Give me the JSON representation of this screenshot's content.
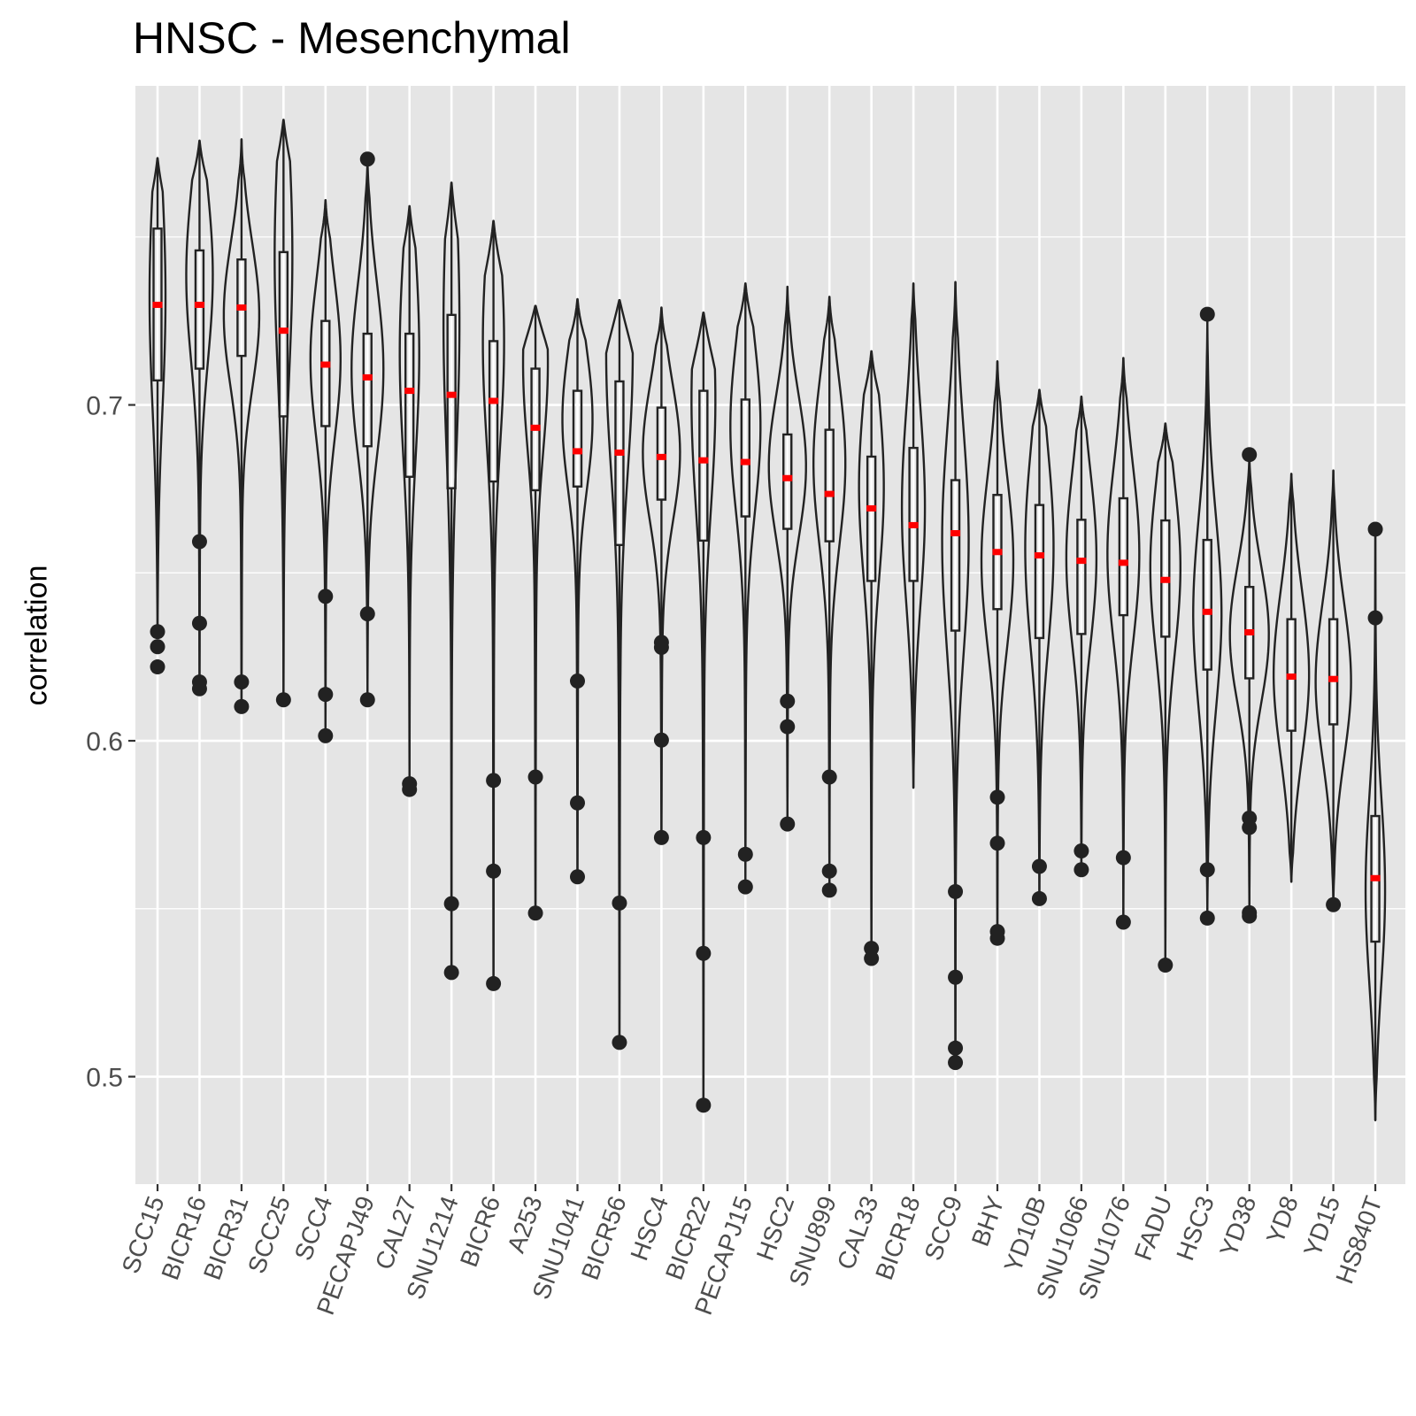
{
  "chart_data": {
    "type": "violin",
    "title": "HNSC - Mesenchymal",
    "xlabel": "",
    "ylabel": "correlation",
    "ylim": [
      0.468,
      0.795
    ],
    "yticks": [
      0.5,
      0.6,
      0.7
    ],
    "ytick_labels": [
      "0.5",
      "0.6",
      "0.7"
    ],
    "grid": true,
    "legend": "none",
    "colors": {
      "panel": "#e5e5e5",
      "grid": "#ffffff",
      "outline": "#222222",
      "median": "#ff0000",
      "axis_text": "#4d4d4d"
    },
    "categories": [
      "SCC15",
      "BICR16",
      "BICR31",
      "SCC25",
      "SCC4",
      "PECAPJ49",
      "CAL27",
      "SNU1214",
      "BICR6",
      "A253",
      "SNU1041",
      "BICR56",
      "HSC4",
      "BICR22",
      "PECAPJ15",
      "HSC2",
      "SNU899",
      "CAL33",
      "BICR18",
      "SCC9",
      "BHY",
      "YD10B",
      "SNU1066",
      "SNU1076",
      "FADU",
      "HSC3",
      "YD38",
      "YD8",
      "YD15",
      "HS840T"
    ],
    "violins": [
      {
        "name": "SCC15",
        "min": 0.633,
        "max": 0.7735,
        "q1": 0.7073,
        "median": 0.7298,
        "q3": 0.7525,
        "center": 0.733,
        "half_width": 0.18,
        "outliers": [
          0.6325,
          0.628,
          0.622
        ]
      },
      {
        "name": "BICR16",
        "min": 0.615,
        "max": 0.7787,
        "q1": 0.7108,
        "median": 0.7298,
        "q3": 0.746,
        "center": 0.739,
        "half_width": 0.3,
        "outliers": [
          0.6593,
          0.635,
          0.6175,
          0.6155
        ]
      },
      {
        "name": "BICR31",
        "min": 0.609,
        "max": 0.7791,
        "q1": 0.7146,
        "median": 0.729,
        "q3": 0.7433,
        "center": 0.727,
        "half_width": 0.4,
        "outliers": [
          0.6175,
          0.6102
        ]
      },
      {
        "name": "SCC25",
        "min": 0.612,
        "max": 0.7849,
        "q1": 0.6966,
        "median": 0.7221,
        "q3": 0.7455,
        "center": 0.745,
        "half_width": 0.2,
        "outliers": [
          0.6122
        ]
      },
      {
        "name": "SCC4",
        "min": 0.601,
        "max": 0.761,
        "q1": 0.6937,
        "median": 0.712,
        "q3": 0.725,
        "center": 0.714,
        "half_width": 0.34,
        "outliers": [
          0.643,
          0.6138,
          0.6015
        ]
      },
      {
        "name": "PECAPJ49",
        "min": 0.611,
        "max": 0.7732,
        "q1": 0.6877,
        "median": 0.7082,
        "q3": 0.7212,
        "center": 0.711,
        "half_width": 0.36,
        "outliers": [
          0.7732,
          0.6378,
          0.6122
        ]
      },
      {
        "name": "CAL27",
        "min": 0.585,
        "max": 0.7592,
        "q1": 0.6786,
        "median": 0.7042,
        "q3": 0.7212,
        "center": 0.716,
        "half_width": 0.22,
        "outliers": [
          0.5872,
          0.5855
        ]
      },
      {
        "name": "SNU1214",
        "min": 0.531,
        "max": 0.7662,
        "q1": 0.6752,
        "median": 0.703,
        "q3": 0.7268,
        "center": 0.725,
        "half_width": 0.18,
        "outliers": [
          0.5515,
          0.531
        ]
      },
      {
        "name": "BICR6",
        "min": 0.527,
        "max": 0.7548,
        "q1": 0.6772,
        "median": 0.7012,
        "q3": 0.719,
        "center": 0.719,
        "half_width": 0.24,
        "outliers": [
          0.5882,
          0.5612,
          0.5277
        ]
      },
      {
        "name": "A253",
        "min": 0.548,
        "max": 0.7295,
        "q1": 0.6746,
        "median": 0.6932,
        "q3": 0.7108,
        "center": 0.713,
        "half_width": 0.28,
        "outliers": [
          0.5892,
          0.5487
        ]
      },
      {
        "name": "SNU1041",
        "min": 0.56,
        "max": 0.7315,
        "q1": 0.6757,
        "median": 0.6862,
        "q3": 0.7042,
        "center": 0.696,
        "half_width": 0.34,
        "outliers": [
          0.6178,
          0.5815,
          0.5595
        ]
      },
      {
        "name": "BICR56",
        "min": 0.51,
        "max": 0.7312,
        "q1": 0.6583,
        "median": 0.6858,
        "q3": 0.707,
        "center": 0.716,
        "half_width": 0.3,
        "outliers": [
          0.5517,
          0.5102
        ]
      },
      {
        "name": "HSC4",
        "min": 0.571,
        "max": 0.729,
        "q1": 0.6718,
        "median": 0.6845,
        "q3": 0.6992,
        "center": 0.686,
        "half_width": 0.42,
        "outliers": [
          0.6293,
          0.6278,
          0.6002,
          0.5712
        ]
      },
      {
        "name": "BICR22",
        "min": 0.491,
        "max": 0.7275,
        "q1": 0.6596,
        "median": 0.6835,
        "q3": 0.7042,
        "center": 0.702,
        "half_width": 0.27,
        "outliers": [
          0.5712,
          0.5367,
          0.4915
        ]
      },
      {
        "name": "PECAPJ15",
        "min": 0.556,
        "max": 0.7362,
        "q1": 0.6668,
        "median": 0.683,
        "q3": 0.7016,
        "center": 0.694,
        "half_width": 0.34,
        "outliers": [
          0.5662,
          0.5565
        ]
      },
      {
        "name": "HSC2",
        "min": 0.575,
        "max": 0.7352,
        "q1": 0.6631,
        "median": 0.6782,
        "q3": 0.6912,
        "center": 0.682,
        "half_width": 0.42,
        "outliers": [
          0.6118,
          0.6042,
          0.5752
        ]
      },
      {
        "name": "SNU899",
        "min": 0.555,
        "max": 0.7322,
        "q1": 0.6594,
        "median": 0.6735,
        "q3": 0.6926,
        "center": 0.683,
        "half_width": 0.36,
        "outliers": [
          0.5892,
          0.5612,
          0.5555
        ]
      },
      {
        "name": "CAL33",
        "min": 0.535,
        "max": 0.716,
        "q1": 0.6476,
        "median": 0.6692,
        "q3": 0.6846,
        "center": 0.676,
        "half_width": 0.28,
        "outliers": [
          0.5382,
          0.5352
        ]
      },
      {
        "name": "BICR18",
        "min": 0.586,
        "max": 0.7362,
        "q1": 0.6476,
        "median": 0.6642,
        "q3": 0.6872,
        "center": 0.67,
        "half_width": 0.26,
        "outliers": []
      },
      {
        "name": "SCC9",
        "min": 0.504,
        "max": 0.7366,
        "q1": 0.6328,
        "median": 0.6618,
        "q3": 0.6776,
        "center": 0.66,
        "half_width": 0.3,
        "outliers": [
          0.5551,
          0.5296,
          0.5085,
          0.5042
        ]
      },
      {
        "name": "BHY",
        "min": 0.541,
        "max": 0.713,
        "q1": 0.6392,
        "median": 0.6562,
        "q3": 0.6732,
        "center": 0.654,
        "half_width": 0.36,
        "outliers": [
          0.5832,
          0.5695,
          0.5432,
          0.5412
        ]
      },
      {
        "name": "YD10B",
        "min": 0.553,
        "max": 0.7045,
        "q1": 0.6306,
        "median": 0.6552,
        "q3": 0.6702,
        "center": 0.658,
        "half_width": 0.32,
        "outliers": [
          0.5626,
          0.553
        ]
      },
      {
        "name": "SNU1066",
        "min": 0.561,
        "max": 0.7025,
        "q1": 0.6318,
        "median": 0.6536,
        "q3": 0.6658,
        "center": 0.655,
        "half_width": 0.34,
        "outliers": [
          0.5672,
          0.5616
        ]
      },
      {
        "name": "SNU1076",
        "min": 0.546,
        "max": 0.714,
        "q1": 0.6374,
        "median": 0.653,
        "q3": 0.6722,
        "center": 0.656,
        "half_width": 0.36,
        "outliers": [
          0.5652,
          0.546
        ]
      },
      {
        "name": "FADU",
        "min": 0.533,
        "max": 0.6945,
        "q1": 0.631,
        "median": 0.6479,
        "q3": 0.6656,
        "center": 0.652,
        "half_width": 0.34,
        "outliers": [
          0.5332
        ]
      },
      {
        "name": "HSC3",
        "min": 0.547,
        "max": 0.727,
        "q1": 0.6212,
        "median": 0.6384,
        "q3": 0.6598,
        "center": 0.638,
        "half_width": 0.32,
        "outliers": [
          0.727,
          0.5616,
          0.5472
        ]
      },
      {
        "name": "YD38",
        "min": 0.548,
        "max": 0.6852,
        "q1": 0.6186,
        "median": 0.6323,
        "q3": 0.6458,
        "center": 0.632,
        "half_width": 0.44,
        "outliers": [
          0.6852,
          0.577,
          0.5742,
          0.5488,
          0.5478
        ]
      },
      {
        "name": "YD8",
        "min": 0.558,
        "max": 0.6795,
        "q1": 0.603,
        "median": 0.6191,
        "q3": 0.6362,
        "center": 0.62,
        "half_width": 0.4,
        "outliers": []
      },
      {
        "name": "YD15",
        "min": 0.551,
        "max": 0.6805,
        "q1": 0.6049,
        "median": 0.6184,
        "q3": 0.6362,
        "center": 0.618,
        "half_width": 0.4,
        "outliers": [
          0.5512
        ]
      },
      {
        "name": "HS840T",
        "min": 0.487,
        "max": 0.663,
        "q1": 0.5402,
        "median": 0.5591,
        "q3": 0.5776,
        "center": 0.555,
        "half_width": 0.22,
        "outliers": [
          0.663,
          0.6366
        ]
      }
    ]
  }
}
